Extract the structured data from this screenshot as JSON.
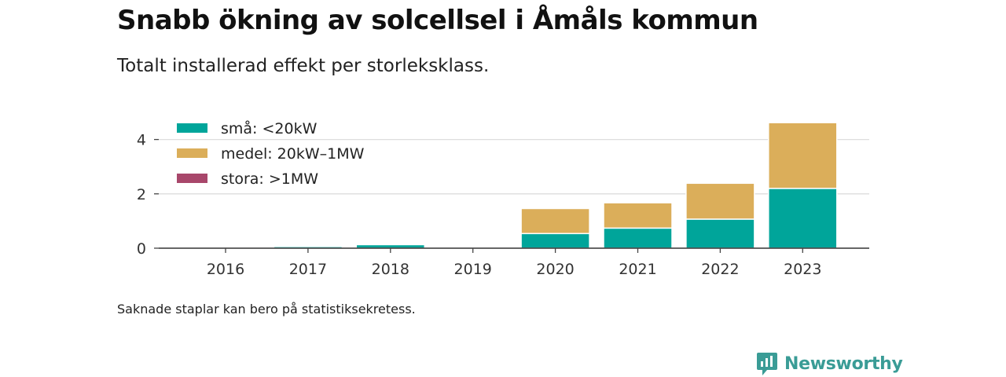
{
  "title": "Snabb ökning av solcellsel i Åmåls kommun",
  "subtitle": "Totalt installerad effekt per storleksklass.",
  "note": "Saknade staplar kan bero på statistiksekretess.",
  "brand": {
    "name": "Newsworthy",
    "icon": "newsworthy-logo-icon",
    "color": "#3a9c96"
  },
  "chart_data": {
    "type": "bar",
    "stacked": true,
    "categories": [
      "2016",
      "2017",
      "2018",
      "2019",
      "2020",
      "2021",
      "2022",
      "2023"
    ],
    "series": [
      {
        "name": "små: <20kW",
        "color": "#00a59a",
        "values": [
          0.03,
          0.06,
          0.13,
          0,
          0.54,
          0.74,
          1.07,
          2.2
        ]
      },
      {
        "name": "medel: 20kW–1MW",
        "color": "#dbae5a",
        "values": [
          0,
          0,
          0,
          0,
          0.92,
          0.93,
          1.32,
          2.42
        ]
      },
      {
        "name": "stora: >1MW",
        "color": "#a8476b",
        "values": [
          0,
          0,
          0,
          0,
          0,
          0,
          0,
          0
        ]
      }
    ],
    "yticks": [
      0,
      2,
      4
    ],
    "ylim": [
      0,
      4.7
    ],
    "xlabel": "",
    "ylabel": "",
    "grid": true,
    "legend_position": "top-left"
  }
}
